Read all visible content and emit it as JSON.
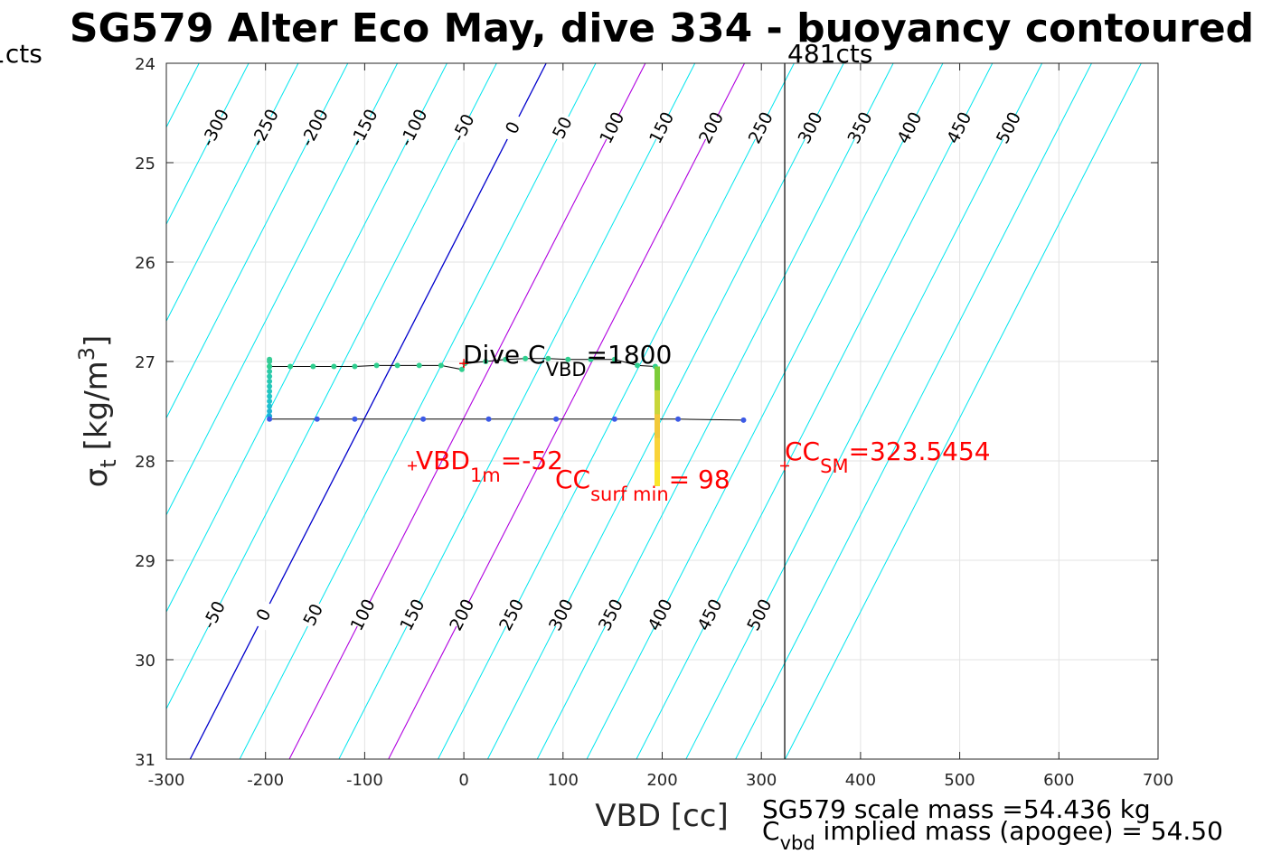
{
  "chart_data": {
    "type": "scatter",
    "title": "SG579 Alter Eco May, dive 334 - buoyancy contoured",
    "xlabel": "VBD [cc]",
    "ylabel_main": "σ",
    "ylabel_sub": "t",
    "ylabel_unit": "[kg/m",
    "ylabel_sup": "3",
    "ylabel_close": "]",
    "xlim": [
      -300,
      700
    ],
    "ylim": [
      24,
      31
    ],
    "y_reversed": true,
    "grid": true,
    "xticks": [
      -300,
      -200,
      -100,
      0,
      100,
      200,
      300,
      400,
      500,
      600,
      700
    ],
    "yticks": [
      24,
      25,
      26,
      27,
      28,
      29,
      30,
      31
    ],
    "xtick_labels": [
      "-300",
      "-200",
      "-100",
      "0",
      "100",
      "200",
      "300",
      "400",
      "500",
      "600",
      "700"
    ],
    "ytick_labels": [
      "24",
      "25",
      "26",
      "27",
      "28",
      "29",
      "30",
      "31"
    ],
    "contour_lines": {
      "levels": [
        -450,
        -400,
        -350,
        -300,
        -250,
        -200,
        -150,
        -100,
        -50,
        0,
        50,
        100,
        150,
        200,
        250,
        300,
        350,
        400,
        450,
        500,
        550,
        600
      ],
      "zero_level": 0,
      "highlight_levels": [
        100,
        200
      ],
      "zero_x_at": [
        [
          24,
          83
        ],
        [
          31,
          -276
        ]
      ],
      "colors": {
        "default": "#00e5ee",
        "zero": "#0000cc",
        "highlight": "#b000e0"
      }
    },
    "contour_labels_top": [
      "-300",
      "-250",
      "-200",
      "-150",
      "-100",
      "-50",
      "0",
      "50",
      "100",
      "150",
      "200",
      "250",
      "300",
      "350",
      "400",
      "450",
      "500"
    ],
    "contour_labels_bottom": [
      "-50",
      "0",
      "50",
      "100",
      "150",
      "200",
      "250",
      "300",
      "350",
      "400",
      "450",
      "500"
    ],
    "dive_trace": {
      "line_color": "#000000",
      "points": [
        {
          "x": -196,
          "y": 27.55
        },
        {
          "x": -196,
          "y": 27.5
        },
        {
          "x": -196,
          "y": 27.45
        },
        {
          "x": -196,
          "y": 27.4
        },
        {
          "x": -196,
          "y": 27.35
        },
        {
          "x": -196,
          "y": 27.3
        },
        {
          "x": -196,
          "y": 27.25
        },
        {
          "x": -196,
          "y": 27.2
        },
        {
          "x": -196,
          "y": 27.15
        },
        {
          "x": -196,
          "y": 27.1
        },
        {
          "x": -196,
          "y": 27.05
        },
        {
          "x": -196,
          "y": 27.0
        },
        {
          "x": -196,
          "y": 26.98
        },
        {
          "x": -196,
          "y": 27.05
        },
        {
          "x": -175,
          "y": 27.05
        },
        {
          "x": -152,
          "y": 27.05
        },
        {
          "x": -131,
          "y": 27.05
        },
        {
          "x": -110,
          "y": 27.05
        },
        {
          "x": -88,
          "y": 27.04
        },
        {
          "x": -67,
          "y": 27.04
        },
        {
          "x": -45,
          "y": 27.04
        },
        {
          "x": -23,
          "y": 27.04
        },
        {
          "x": -2,
          "y": 27.08
        },
        {
          "x": 1,
          "y": 27.02
        },
        {
          "x": 22,
          "y": 27.0
        },
        {
          "x": 42,
          "y": 26.98
        },
        {
          "x": 62,
          "y": 26.97
        },
        {
          "x": 85,
          "y": 26.97
        },
        {
          "x": 105,
          "y": 26.98
        },
        {
          "x": 128,
          "y": 26.98
        },
        {
          "x": 152,
          "y": 26.98
        },
        {
          "x": 175,
          "y": 27.04
        },
        {
          "x": 193,
          "y": 27.05
        }
      ],
      "point_colors": [
        "#1aa9d6",
        "#1fb5d2",
        "#20bfd0",
        "#22c3cc",
        "#22c4c6",
        "#24c6c0",
        "#26c7ba",
        "#29c8b3",
        "#2bc9ad",
        "#2ecaa7",
        "#31cba1",
        "#34cb9b",
        "#37cc95"
      ]
    },
    "ascent_trace": {
      "points": [
        {
          "x": -196,
          "y": 27.58
        },
        {
          "x": -148,
          "y": 27.58
        },
        {
          "x": -110,
          "y": 27.58
        },
        {
          "x": -41,
          "y": 27.58
        },
        {
          "x": 25,
          "y": 27.58
        },
        {
          "x": 93,
          "y": 27.58
        },
        {
          "x": 152,
          "y": 27.58
        },
        {
          "x": 216,
          "y": 27.58
        },
        {
          "x": 282,
          "y": 27.59
        }
      ],
      "color": "#3c5ae6"
    },
    "surface_bar": {
      "x": 195,
      "y_top": 27.05,
      "y_bottom": 28.25,
      "colors": [
        "#7ccc3a",
        "#c8d63a",
        "#f2c93a",
        "#f9d33a",
        "#f9e62a"
      ]
    },
    "vertical_line_x": 323.5454,
    "markers": [
      {
        "x": 0,
        "y": 27.02,
        "color": "#ff0000"
      },
      {
        "x": -52,
        "y": 28.05,
        "color": "#ff0000"
      },
      {
        "x": 323.5454,
        "y": 28.05,
        "color": "#ff0000"
      }
    ],
    "annotations": {
      "dive_ccvbd": {
        "main": "Dive C",
        "sub": "VBD",
        "value": "=1800"
      },
      "vbd_1m": {
        "main": "VBD",
        "sub": "1m",
        "value": "=-52"
      },
      "cc_surf_min": {
        "main": "CC",
        "sub": "surf min",
        "value": "= 98"
      },
      "cc_sm": {
        "main": "CC",
        "sub": "SM",
        "value": "=323.5454"
      }
    },
    "left_cts_label": "1cts",
    "right_cts_label": "481cts",
    "footer_line1": "SG579 scale mass =54.436 kg",
    "footer_line2_main": "C",
    "footer_line2_sub": "vbd",
    "footer_line2_rest": " implied mass (apogee) = 54.50"
  }
}
